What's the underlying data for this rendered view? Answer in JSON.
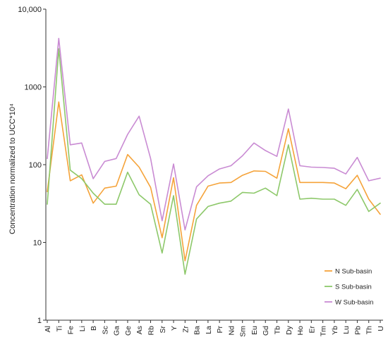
{
  "chart_data": {
    "type": "line",
    "title": "",
    "xlabel": "",
    "ylabel": "Concentration normalized to UCC*10⁴",
    "y_scale": "log",
    "ylim": [
      1,
      10000
    ],
    "y_ticks": [
      {
        "value": 1,
        "label": "1"
      },
      {
        "value": 10,
        "label": "10"
      },
      {
        "value": 100,
        "label": "100"
      },
      {
        "value": 1000,
        "label": "1000"
      },
      {
        "value": 10000,
        "label": "10,000"
      }
    ],
    "grid": false,
    "legend_position": "bottom-right",
    "categories": [
      "Al",
      "Ti",
      "Fe",
      "Li",
      "B",
      "Sc",
      "Ga",
      "Ge",
      "As",
      "Rb",
      "Sr",
      "Y",
      "Zr",
      "Ba",
      "La",
      "Pr",
      "Nd",
      "Sm",
      "Eu",
      "Gd",
      "Tb",
      "Dy",
      "Ho",
      "Er",
      "Tm",
      "Yb",
      "Lu",
      "Pb",
      "Th",
      "U"
    ],
    "series": [
      {
        "name": "N Sub-basin",
        "color": "#F5A33A",
        "values": [
          45,
          640,
          62,
          74,
          32,
          50,
          53,
          135,
          93,
          51,
          11.5,
          68,
          5.8,
          30,
          53,
          58,
          59,
          73,
          83,
          82,
          67,
          290,
          59,
          59,
          59,
          58,
          49,
          73,
          36,
          23
        ]
      },
      {
        "name": "S Sub-basin",
        "color": "#8DC86A",
        "values": [
          31,
          3100,
          85,
          66,
          43,
          31,
          31,
          80,
          41,
          31,
          7.3,
          40,
          3.9,
          20,
          29,
          32,
          34,
          44,
          43,
          50,
          40,
          180,
          36,
          37,
          36,
          36,
          30,
          48,
          25,
          32
        ]
      },
      {
        "name": "W Sub-basin",
        "color": "#C98BD3",
        "values": [
          120,
          4200,
          180,
          190,
          66,
          110,
          120,
          245,
          420,
          120,
          19,
          102,
          14.5,
          52,
          72,
          88,
          97,
          130,
          190,
          152,
          128,
          520,
          97,
          93,
          92,
          90,
          76,
          124,
          62,
          67
        ]
      }
    ]
  }
}
